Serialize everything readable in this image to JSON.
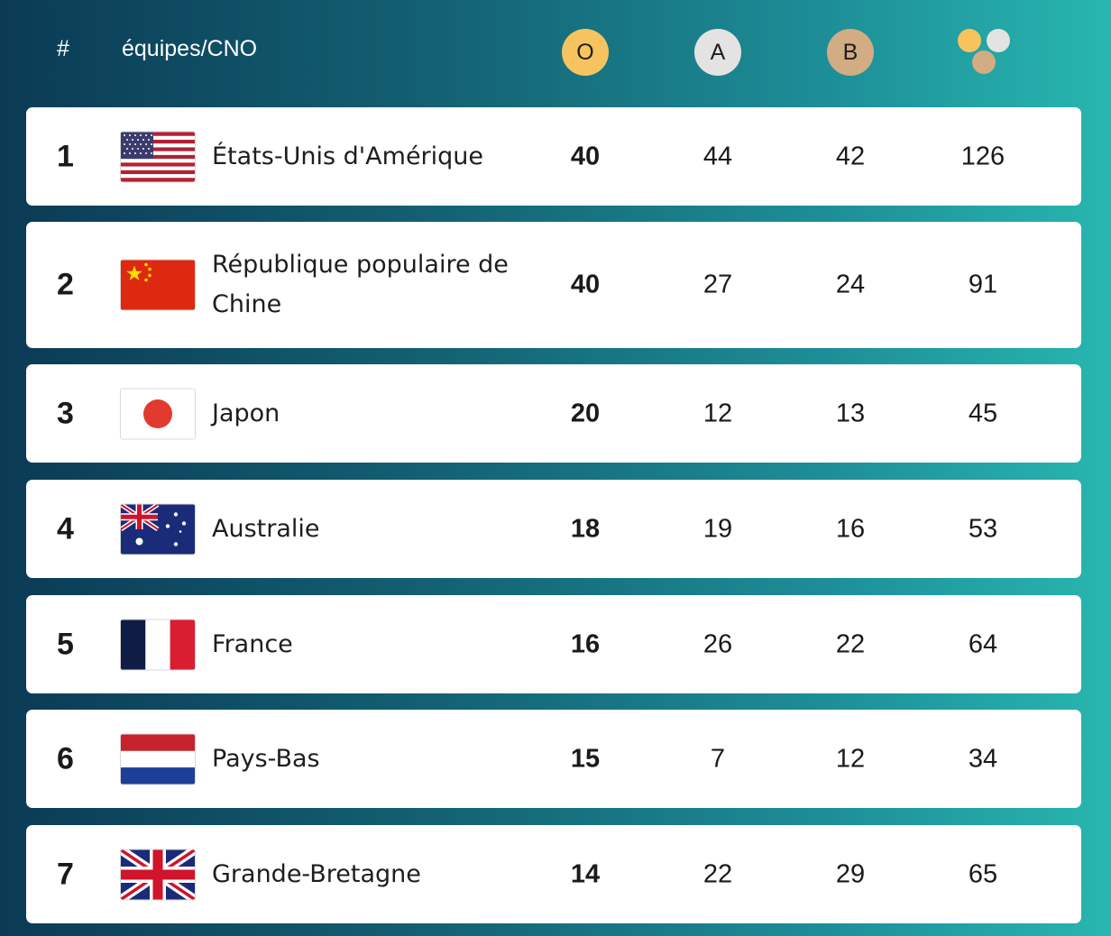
{
  "header": {
    "rank_label": "#",
    "team_label": "équipes/CNO",
    "gold_label": "O",
    "silver_label": "A",
    "bronze_label": "B",
    "total_icon": "medals-total-icon"
  },
  "colors": {
    "gold": "#f6c35f",
    "silver": "#e3e3e3",
    "bronze": "#d2ac82"
  },
  "rows": [
    {
      "rank": "1",
      "flag": "usa-flag-icon",
      "name": "États-Unis d'Amérique",
      "gold": "40",
      "silver": "44",
      "bronze": "42",
      "total": "126"
    },
    {
      "rank": "2",
      "flag": "china-flag-icon",
      "name": "République populaire de Chine",
      "gold": "40",
      "silver": "27",
      "bronze": "24",
      "total": "91"
    },
    {
      "rank": "3",
      "flag": "japan-flag-icon",
      "name": "Japon",
      "gold": "20",
      "silver": "12",
      "bronze": "13",
      "total": "45"
    },
    {
      "rank": "4",
      "flag": "australia-flag-icon",
      "name": "Australie",
      "gold": "18",
      "silver": "19",
      "bronze": "16",
      "total": "53"
    },
    {
      "rank": "5",
      "flag": "france-flag-icon",
      "name": "France",
      "gold": "16",
      "silver": "26",
      "bronze": "22",
      "total": "64"
    },
    {
      "rank": "6",
      "flag": "netherlands-flag-icon",
      "name": "Pays-Bas",
      "gold": "15",
      "silver": "7",
      "bronze": "12",
      "total": "34"
    },
    {
      "rank": "7",
      "flag": "great-britain-flag-icon",
      "name": "Grande-Bretagne",
      "gold": "14",
      "silver": "22",
      "bronze": "29",
      "total": "65"
    }
  ]
}
